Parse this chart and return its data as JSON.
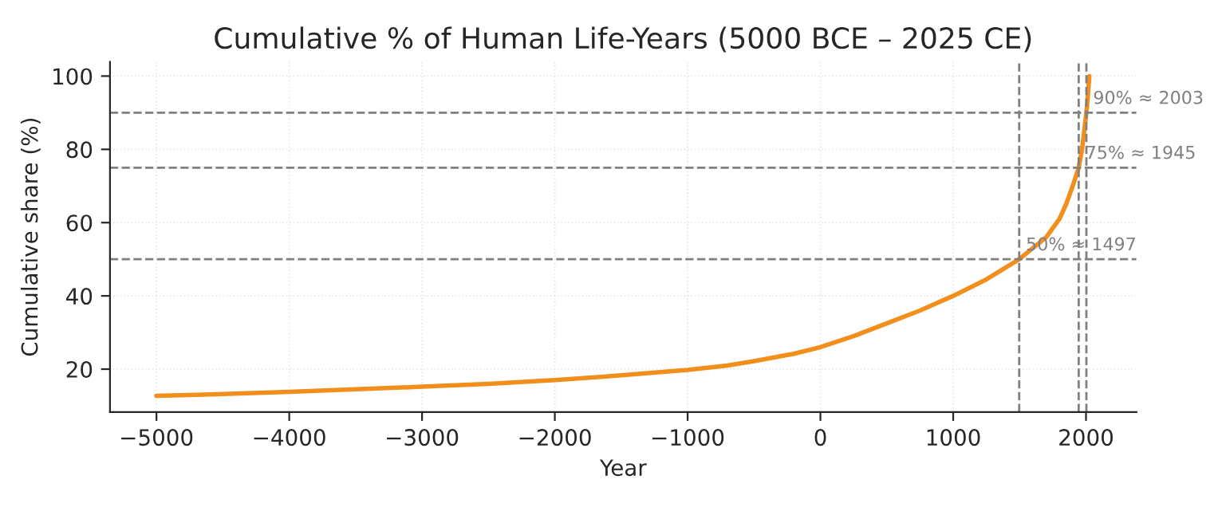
{
  "chart_data": {
    "type": "line",
    "title": "Cumulative % of Human Life-Years (5000 BCE – 2025 CE)",
    "xlabel": "Year",
    "ylabel": "Cumulative share (%)",
    "x": [
      -5000,
      -4500,
      -4000,
      -3500,
      -3000,
      -2500,
      -2000,
      -1500,
      -1000,
      -700,
      -500,
      -200,
      0,
      250,
      500,
      750,
      1000,
      1250,
      1497,
      1700,
      1800,
      1850,
      1900,
      1945,
      1970,
      1990,
      2003,
      2015,
      2025
    ],
    "series": [
      {
        "color": "#f28e1c",
        "values": [
          12.7,
          13.2,
          13.8,
          14.5,
          15.2,
          16.0,
          17.0,
          18.3,
          19.8,
          21.0,
          22.2,
          24.2,
          26.0,
          29.0,
          32.5,
          36.0,
          40.0,
          44.5,
          50.0,
          56.0,
          61.0,
          65.0,
          70.0,
          75.0,
          80.0,
          86.0,
          90.0,
          95.0,
          100.0
        ]
      }
    ],
    "xlim": [
      -5350,
      2380
    ],
    "ylim": [
      8.3,
      103.9
    ],
    "xticks": [
      -5000,
      -4000,
      -3000,
      -2000,
      -1000,
      0,
      1000,
      2000
    ],
    "yticks": [
      20,
      40,
      60,
      80,
      100
    ],
    "grid": true,
    "line_style": "solid",
    "marker": "none",
    "ref_lines": [
      {
        "axis": "y",
        "value": 50,
        "color": "#808080",
        "line_style": "dashed"
      },
      {
        "axis": "y",
        "value": 75,
        "color": "#808080",
        "line_style": "dashed"
      },
      {
        "axis": "y",
        "value": 90,
        "color": "#808080",
        "line_style": "dashed"
      },
      {
        "axis": "x",
        "value": 1497,
        "color": "#808080",
        "line_style": "dashed"
      },
      {
        "axis": "x",
        "value": 1945,
        "color": "#808080",
        "line_style": "dashed"
      },
      {
        "axis": "x",
        "value": 2003,
        "color": "#808080",
        "line_style": "dashed"
      }
    ],
    "annotations": [
      {
        "text": "50% ≈ 1497",
        "x": 1497,
        "y": 50
      },
      {
        "text": "75% ≈ 1945",
        "x": 1945,
        "y": 75
      },
      {
        "text": "90% ≈ 2003",
        "x": 2003,
        "y": 90
      }
    ]
  }
}
